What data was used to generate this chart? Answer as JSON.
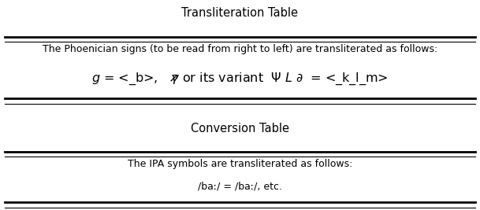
{
  "title1": "Transliteration Table",
  "title2": "Conversion Table",
  "trans_line1": "The Phoenician signs (to be read from right to left) are transliterated as follows:",
  "conv_line1": "The IPA symbols are transliterated as follows:",
  "conv_line2": "/baː/ = /baː/, etc.",
  "bg_color": "#ffffff",
  "text_color": "#000000",
  "line_color": "#000000",
  "title_fontsize": 10.5,
  "body_fontsize": 9.0,
  "formula_fontsize": 11.5
}
